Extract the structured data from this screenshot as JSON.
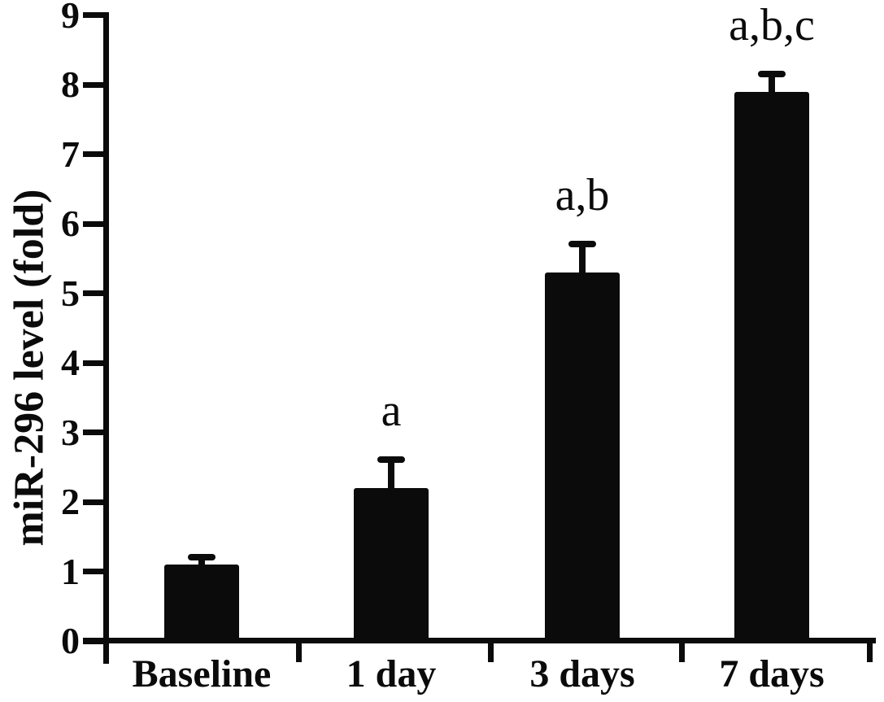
{
  "figure": {
    "background": "#ffffff",
    "ink_color": "#0b0b0b"
  },
  "chart_data": {
    "type": "bar",
    "title": "",
    "ylabel": "miR-296 level (fold)",
    "xlabel": "",
    "ylim": [
      0,
      9
    ],
    "yticks": [
      0,
      1,
      2,
      3,
      4,
      5,
      6,
      7,
      8,
      9
    ],
    "categories": [
      "Baseline",
      "1 day",
      "3 days",
      "7 days"
    ],
    "values": [
      1.1,
      2.2,
      5.3,
      7.9
    ],
    "errors_plus": [
      0.15,
      0.45,
      0.45,
      0.3
    ],
    "annotations": [
      "",
      "a",
      "a,b",
      "a,b,c"
    ],
    "bar_color": "#0b0b0b",
    "background": "#ffffff",
    "grid": false,
    "legend": null
  }
}
